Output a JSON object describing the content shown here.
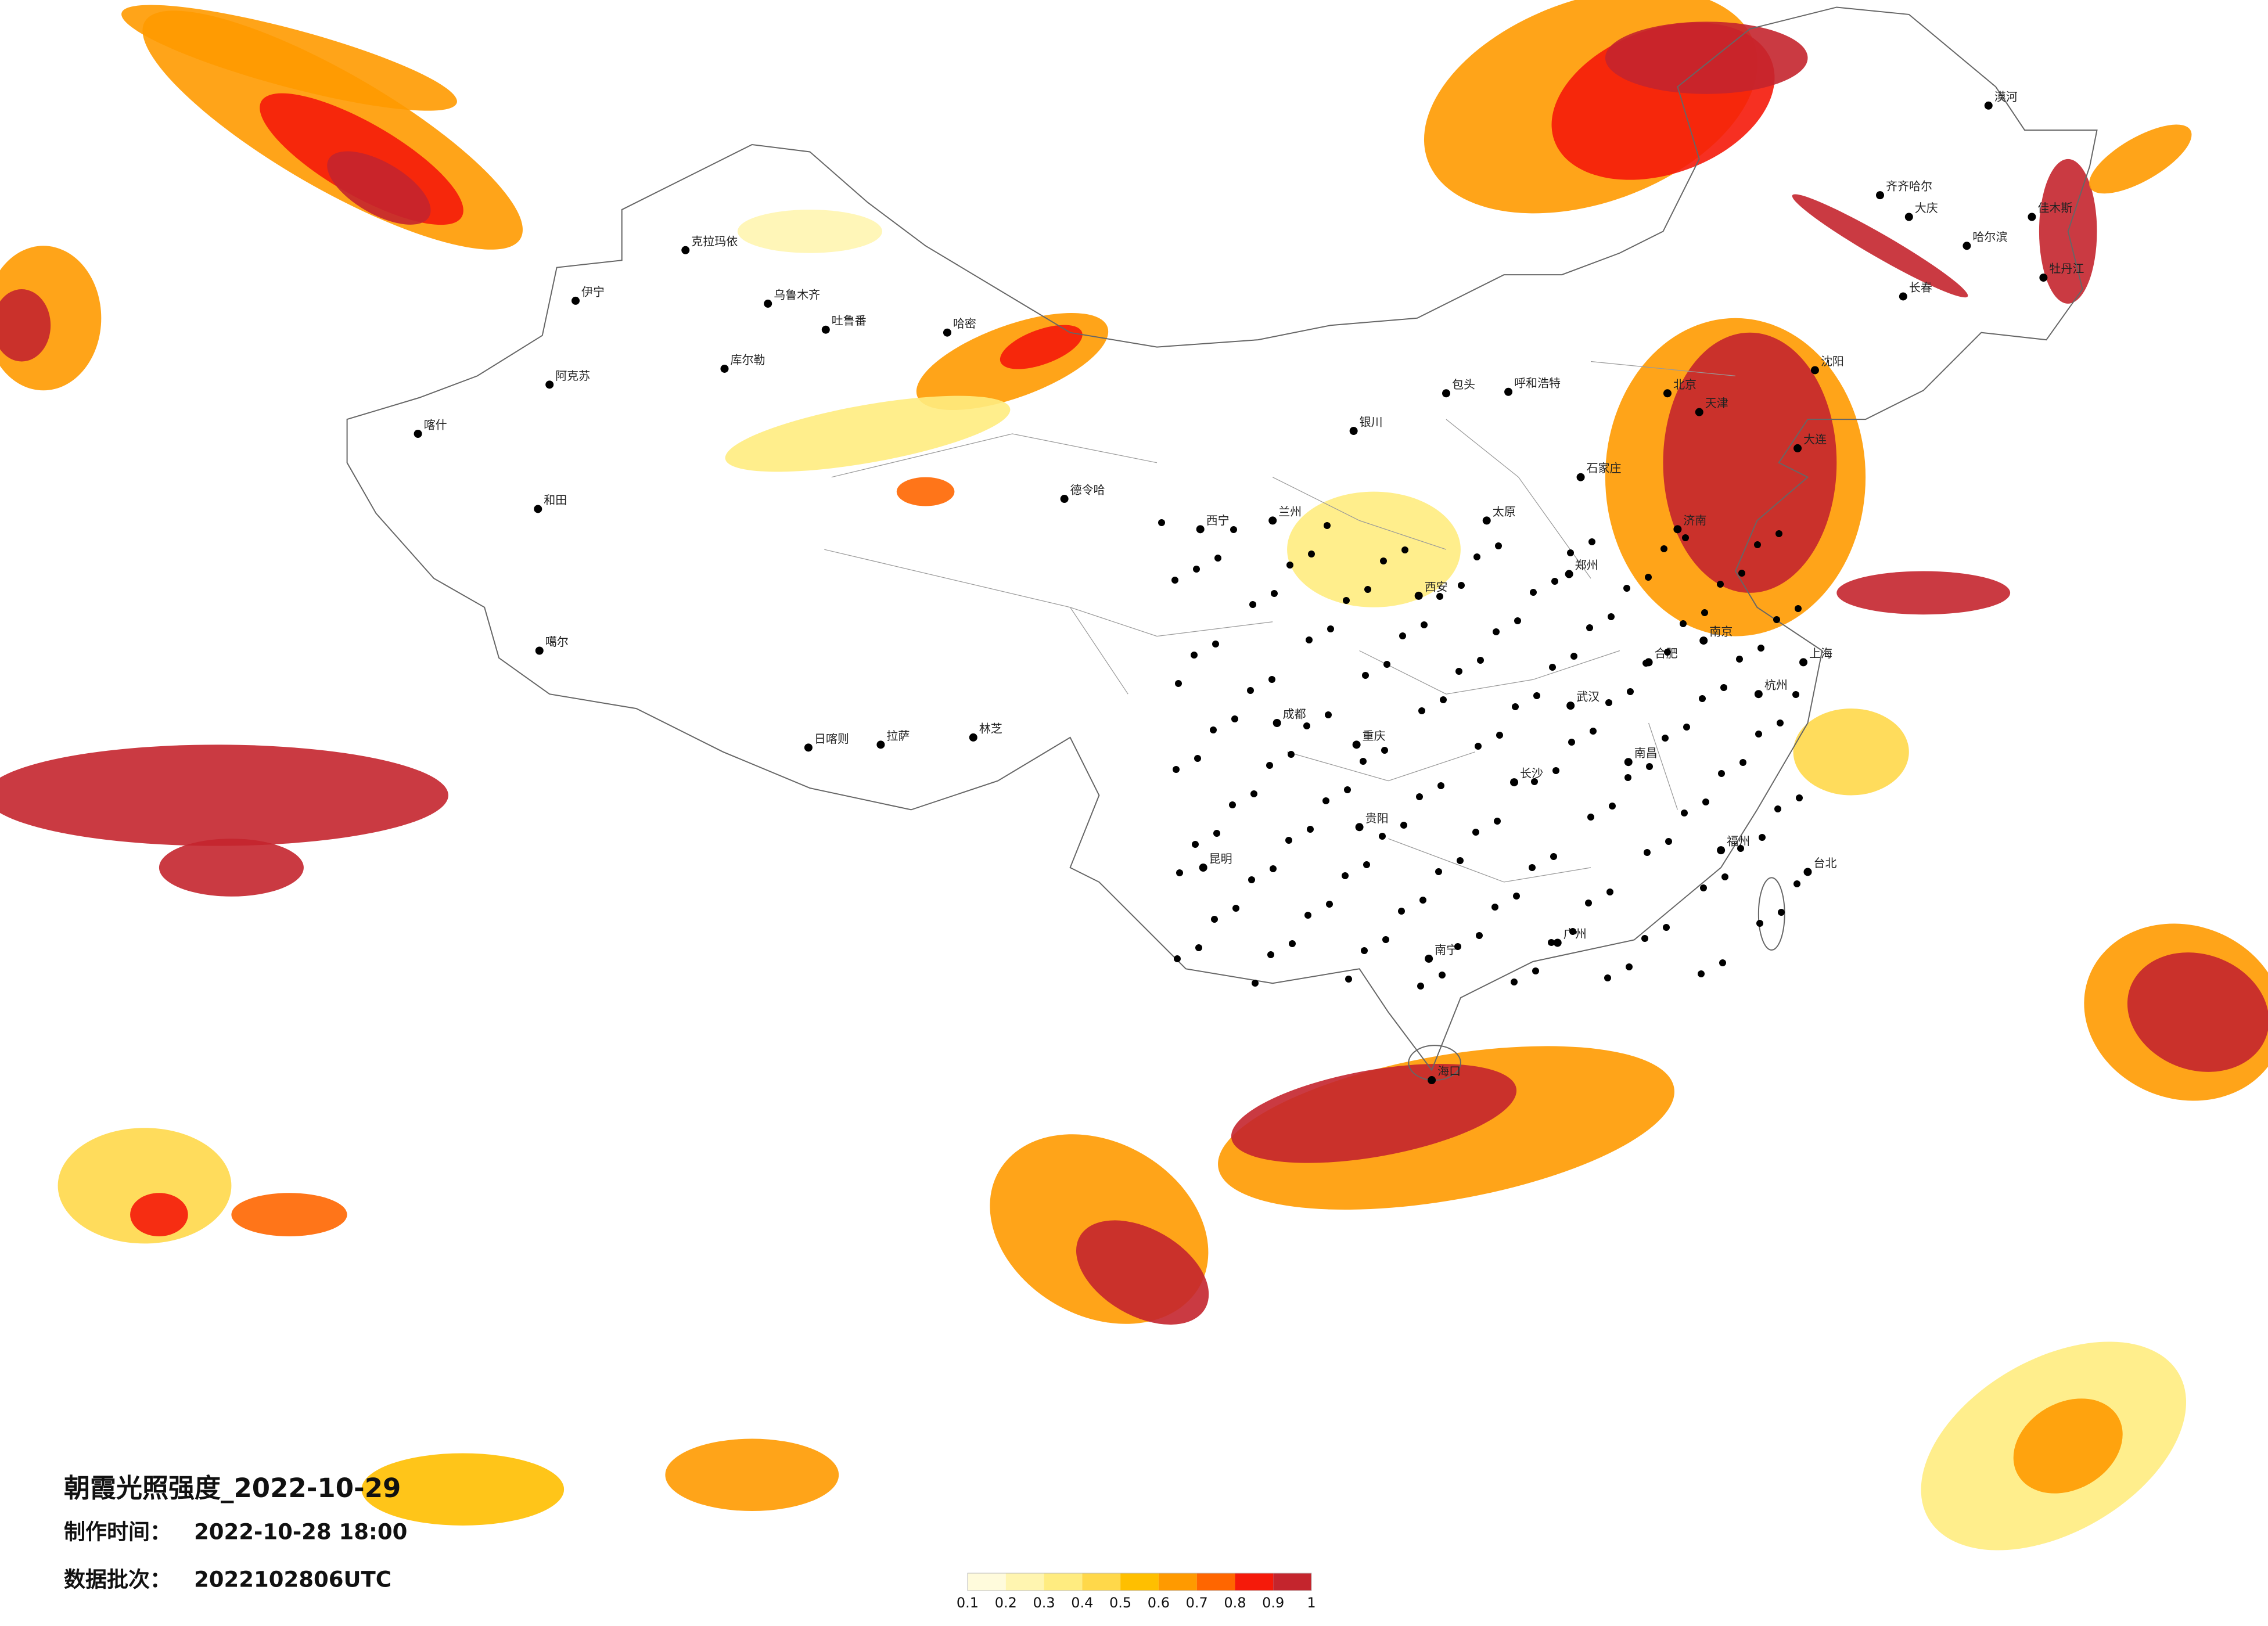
{
  "map": {
    "title": "朝霞光照强度_2022-10-29",
    "info": [
      {
        "label": "制作时间：",
        "value": "2022-10-28 18:00"
      },
      {
        "label": "数据批次：",
        "value": "2022102806UTC"
      }
    ],
    "legend": {
      "colors": [
        "#fffbdc",
        "#fff5b0",
        "#ffec80",
        "#ffd84a",
        "#ffbf00",
        "#ff9a00",
        "#ff6600",
        "#f51a0a",
        "#c4252d"
      ],
      "ticks": [
        0.1,
        0.2,
        0.3,
        0.4,
        0.5,
        0.6,
        0.7,
        0.8,
        0.9,
        1
      ]
    },
    "cities": [
      "克拉玛依",
      "伊宁",
      "乌鲁木齐",
      "吐鲁番",
      "哈密",
      "库尔勒",
      "阿克苏",
      "喀什",
      "和田",
      "德令哈",
      "噶尔",
      "日喀则",
      "拉萨",
      "林芝",
      "西宁",
      "兰州",
      "银川",
      "呼和浩特",
      "包头",
      "北京",
      "天津",
      "石家庄",
      "太原",
      "济南",
      "郑州",
      "西安",
      "成都",
      "重庆",
      "贵阳",
      "昆明",
      "南宁",
      "广州",
      "海口",
      "长沙",
      "武汉",
      "南昌",
      "合肥",
      "南京",
      "上海",
      "杭州",
      "福州",
      "台北",
      "沈阳",
      "长春",
      "哈尔滨",
      "齐齐哈尔",
      "大庆",
      "佳木斯",
      "牡丹江",
      "大连",
      "漠河"
    ]
  }
}
